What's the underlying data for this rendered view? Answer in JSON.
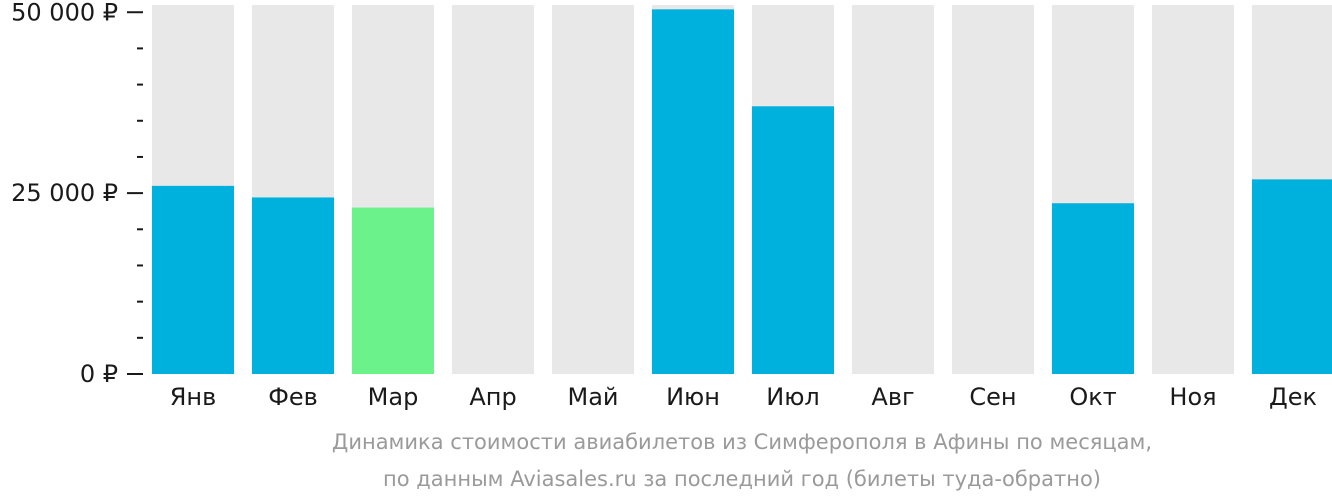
{
  "chart_data": {
    "type": "bar",
    "title": "Динамика стоимости авиабилетов из Симферополя в Афины по месяцам,",
    "subtitle": "по данным Aviasales.ru за последний год (билеты туда-обратно)",
    "categories": [
      "Янв",
      "Фев",
      "Мар",
      "Апр",
      "Май",
      "Июн",
      "Июл",
      "Авг",
      "Сен",
      "Окт",
      "Ноя",
      "Дек"
    ],
    "values": [
      26000,
      24400,
      23000,
      null,
      null,
      50400,
      37000,
      null,
      null,
      23600,
      null,
      26900
    ],
    "ylim": [
      0,
      51000
    ],
    "yticks": [
      {
        "value": 0,
        "label": "0 ₽"
      },
      {
        "value": 25000,
        "label": "25 000 ₽"
      },
      {
        "value": 50000,
        "label": "50 000 ₽"
      }
    ],
    "minor_tick_step": 5000,
    "highlight_index": 2,
    "colors": {
      "bar": "#00b0dd",
      "highlight": "#6cf28a",
      "background_bar": "#e8e8e8",
      "axis_text": "#1a1a1a"
    }
  }
}
